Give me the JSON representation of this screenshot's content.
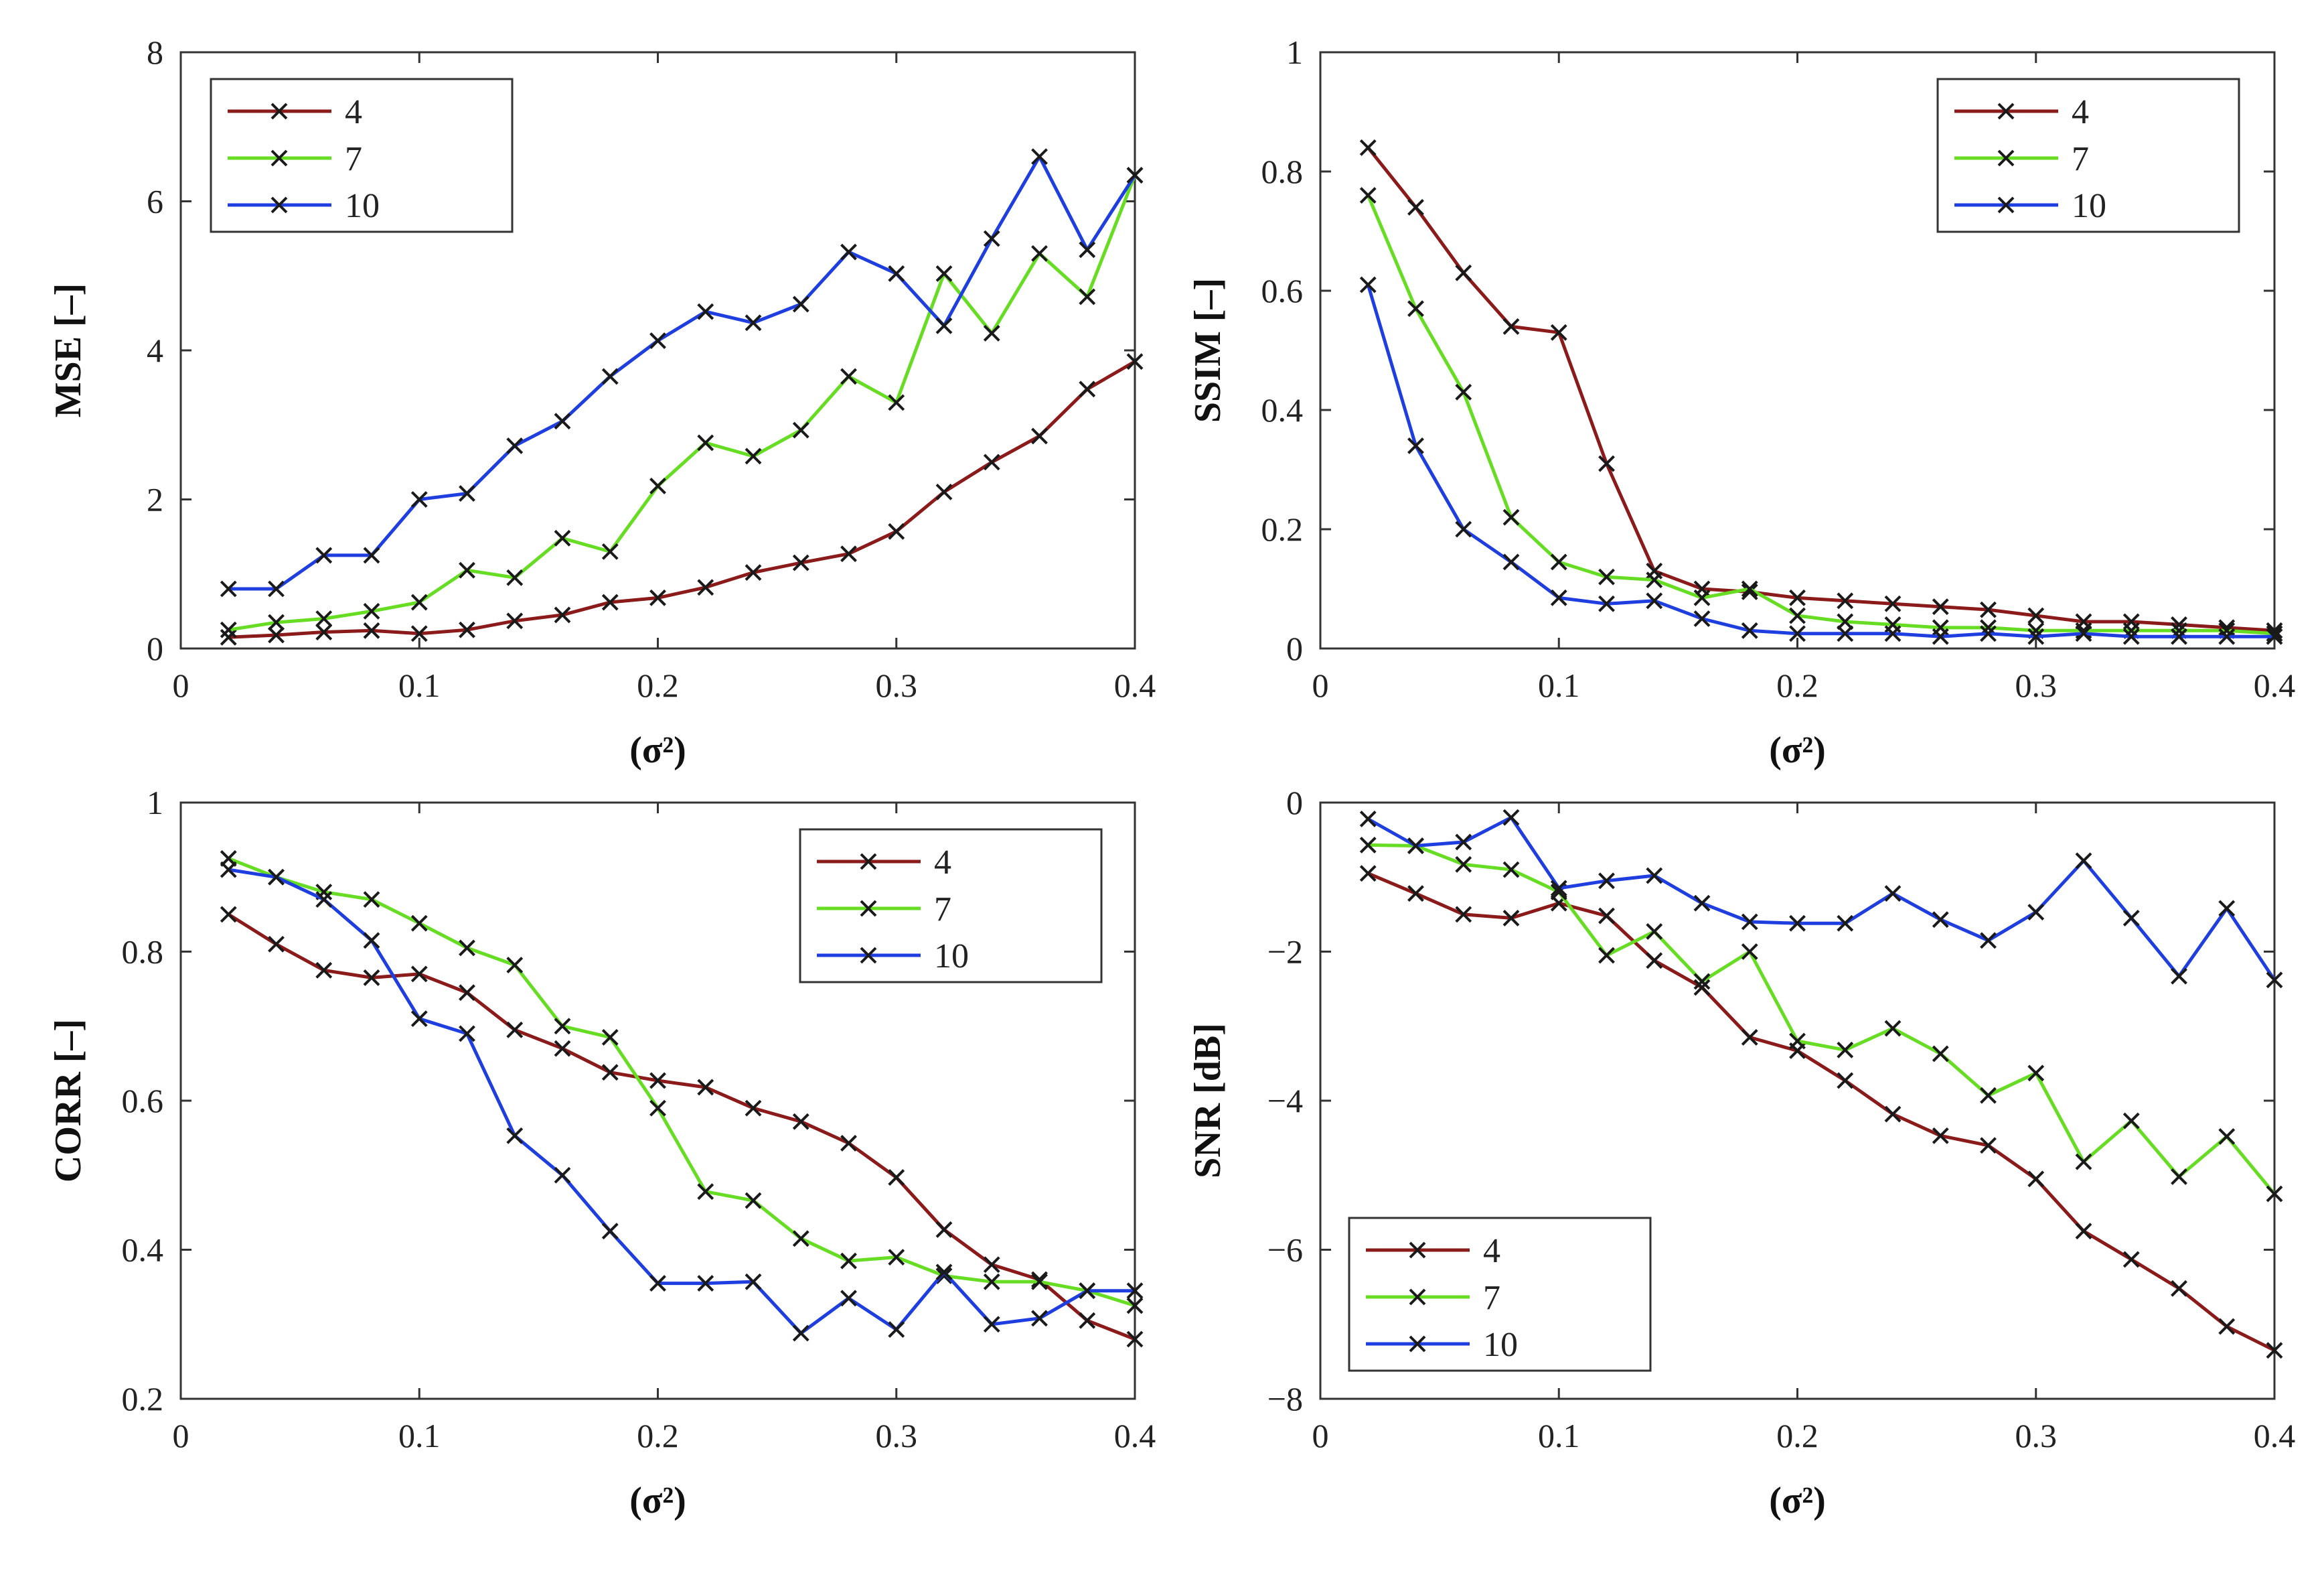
{
  "figure": {
    "title": ""
  },
  "chart_data": [
    {
      "type": "line",
      "title": "",
      "xlabel": "(σ²)",
      "ylabel": "MSE [–]",
      "xlim": [
        0,
        0.4
      ],
      "ylim": [
        0,
        8
      ],
      "x_ticks": [
        "0",
        "0.1",
        "0.2",
        "0.3",
        "0.4"
      ],
      "y_ticks": [
        "0",
        "2",
        "4",
        "6",
        "8"
      ],
      "legend_position": "top-left",
      "x": [
        0.02,
        0.04,
        0.06,
        0.08,
        0.1,
        0.12,
        0.14,
        0.16,
        0.18,
        0.2,
        0.22,
        0.24,
        0.26,
        0.28,
        0.3,
        0.32,
        0.34,
        0.36,
        0.38,
        0.4
      ],
      "series": [
        {
          "name": "4",
          "color": "#8b1a1a",
          "values": [
            0.15,
            0.18,
            0.22,
            0.24,
            0.2,
            0.25,
            0.37,
            0.45,
            0.62,
            0.68,
            0.82,
            1.02,
            1.15,
            1.27,
            1.57,
            2.1,
            2.5,
            2.85,
            3.48,
            3.85
          ]
        },
        {
          "name": "7",
          "color": "#66dd22",
          "values": [
            0.25,
            0.35,
            0.4,
            0.5,
            0.62,
            1.05,
            0.95,
            1.48,
            1.3,
            2.18,
            2.76,
            2.58,
            2.93,
            3.65,
            3.3,
            5.03,
            4.23,
            5.3,
            4.72,
            6.35
          ]
        },
        {
          "name": "10",
          "color": "#1f3ee0",
          "values": [
            0.8,
            0.8,
            1.25,
            1.25,
            2.0,
            2.08,
            2.72,
            3.05,
            3.65,
            4.13,
            4.52,
            4.37,
            4.62,
            5.32,
            5.03,
            4.33,
            5.5,
            6.6,
            5.35,
            6.35
          ]
        }
      ]
    },
    {
      "type": "line",
      "title": "",
      "xlabel": "(σ²)",
      "ylabel": "SSIM [–]",
      "xlim": [
        0,
        0.4
      ],
      "ylim": [
        0,
        1
      ],
      "x_ticks": [
        "0",
        "0.1",
        "0.2",
        "0.3",
        "0.4"
      ],
      "y_ticks": [
        "0",
        "0.2",
        "0.4",
        "0.6",
        "0.8",
        "1"
      ],
      "legend_position": "top-right",
      "x": [
        0.02,
        0.04,
        0.06,
        0.08,
        0.1,
        0.12,
        0.14,
        0.16,
        0.18,
        0.2,
        0.22,
        0.24,
        0.26,
        0.28,
        0.3,
        0.32,
        0.34,
        0.36,
        0.38,
        0.4
      ],
      "series": [
        {
          "name": "4",
          "color": "#8b1a1a",
          "values": [
            0.84,
            0.74,
            0.63,
            0.54,
            0.53,
            0.31,
            0.13,
            0.1,
            0.095,
            0.085,
            0.08,
            0.075,
            0.07,
            0.065,
            0.055,
            0.045,
            0.045,
            0.04,
            0.035,
            0.03
          ]
        },
        {
          "name": "7",
          "color": "#66dd22",
          "values": [
            0.76,
            0.57,
            0.43,
            0.22,
            0.145,
            0.12,
            0.115,
            0.085,
            0.1,
            0.055,
            0.045,
            0.04,
            0.035,
            0.035,
            0.03,
            0.03,
            0.03,
            0.03,
            0.03,
            0.025
          ]
        },
        {
          "name": "10",
          "color": "#1f3ee0",
          "values": [
            0.61,
            0.34,
            0.2,
            0.145,
            0.085,
            0.075,
            0.08,
            0.05,
            0.03,
            0.025,
            0.025,
            0.025,
            0.02,
            0.025,
            0.02,
            0.025,
            0.02,
            0.02,
            0.02,
            0.02
          ]
        }
      ]
    },
    {
      "type": "line",
      "title": "",
      "xlabel": "(σ²)",
      "ylabel": "CORR [–]",
      "xlim": [
        0,
        0.4
      ],
      "ylim": [
        0.2,
        1
      ],
      "x_ticks": [
        "0",
        "0.1",
        "0.2",
        "0.3",
        "0.4"
      ],
      "y_ticks": [
        "0.2",
        "0.4",
        "0.6",
        "0.8",
        "1"
      ],
      "legend_position": "top-right",
      "x": [
        0.02,
        0.04,
        0.06,
        0.08,
        0.1,
        0.12,
        0.14,
        0.16,
        0.18,
        0.2,
        0.22,
        0.24,
        0.26,
        0.28,
        0.3,
        0.32,
        0.34,
        0.36,
        0.38,
        0.4
      ],
      "series": [
        {
          "name": "4",
          "color": "#8b1a1a",
          "values": [
            0.85,
            0.81,
            0.775,
            0.765,
            0.77,
            0.745,
            0.695,
            0.67,
            0.638,
            0.627,
            0.618,
            0.59,
            0.572,
            0.543,
            0.497,
            0.427,
            0.38,
            0.36,
            0.305,
            0.28
          ]
        },
        {
          "name": "7",
          "color": "#66dd22",
          "values": [
            0.925,
            0.9,
            0.88,
            0.87,
            0.838,
            0.805,
            0.782,
            0.7,
            0.685,
            0.59,
            0.478,
            0.466,
            0.415,
            0.385,
            0.39,
            0.365,
            0.357,
            0.357,
            0.345,
            0.325
          ]
        },
        {
          "name": "10",
          "color": "#1f3ee0",
          "values": [
            0.91,
            0.9,
            0.87,
            0.815,
            0.71,
            0.69,
            0.553,
            0.5,
            0.425,
            0.355,
            0.355,
            0.357,
            0.288,
            0.335,
            0.293,
            0.37,
            0.3,
            0.308,
            0.345,
            0.345
          ]
        }
      ]
    },
    {
      "type": "line",
      "title": "",
      "xlabel": "(σ²)",
      "ylabel": "SNR [dB]",
      "xlim": [
        0,
        0.4
      ],
      "ylim": [
        -8,
        0
      ],
      "x_ticks": [
        "0",
        "0.1",
        "0.2",
        "0.3",
        "0.4"
      ],
      "y_ticks": [
        "−8",
        "−6",
        "−4",
        "−2",
        "0"
      ],
      "legend_position": "bottom-left",
      "x": [
        0.02,
        0.04,
        0.06,
        0.08,
        0.1,
        0.12,
        0.14,
        0.16,
        0.18,
        0.2,
        0.22,
        0.24,
        0.26,
        0.28,
        0.3,
        0.32,
        0.34,
        0.36,
        0.38,
        0.4
      ],
      "series": [
        {
          "name": "4",
          "color": "#8b1a1a",
          "values": [
            -0.95,
            -1.22,
            -1.5,
            -1.55,
            -1.35,
            -1.52,
            -2.12,
            -2.48,
            -3.15,
            -3.33,
            -3.73,
            -4.18,
            -4.47,
            -4.6,
            -5.05,
            -5.75,
            -6.13,
            -6.52,
            -7.03,
            -7.35
          ]
        },
        {
          "name": "7",
          "color": "#66dd22",
          "values": [
            -0.57,
            -0.58,
            -0.83,
            -0.9,
            -1.2,
            -2.05,
            -1.73,
            -2.4,
            -2.0,
            -3.2,
            -3.32,
            -3.03,
            -3.37,
            -3.93,
            -3.63,
            -4.82,
            -4.27,
            -5.02,
            -4.48,
            -5.25
          ]
        },
        {
          "name": "10",
          "color": "#1f3ee0",
          "values": [
            -0.22,
            -0.58,
            -0.53,
            -0.2,
            -1.15,
            -1.05,
            -0.98,
            -1.35,
            -1.6,
            -1.62,
            -1.62,
            -1.22,
            -1.57,
            -1.85,
            -1.47,
            -0.78,
            -1.55,
            -2.33,
            -1.42,
            -2.38
          ]
        }
      ]
    }
  ]
}
